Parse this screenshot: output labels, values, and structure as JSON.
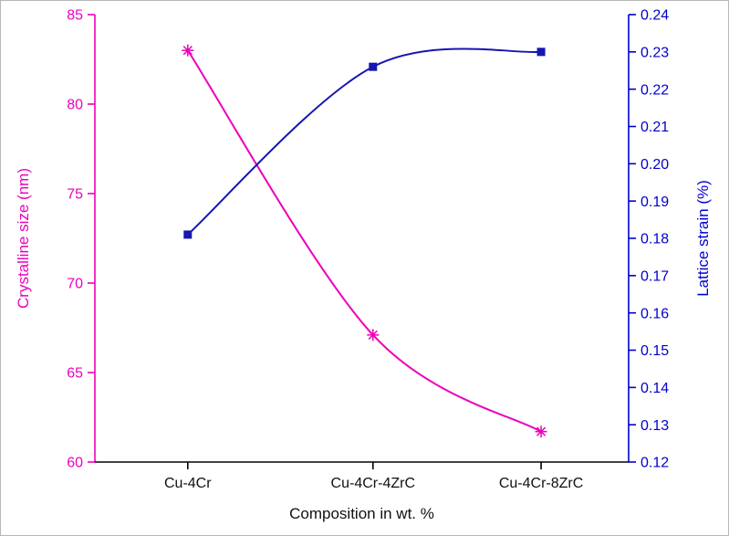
{
  "figure": {
    "background": "#ffffff",
    "border_color": "#b8b8b8"
  },
  "chart_data": {
    "type": "line",
    "title": "",
    "xlabel": "Composition in wt. %",
    "categories": [
      "Cu-4Cr",
      "Cu-4Cr-4ZrC",
      "Cu-4Cr-8ZrC"
    ],
    "x_positions": [
      0.174,
      0.521,
      0.836
    ],
    "left_axis": {
      "label": "Crystalline size (nm)",
      "color": "#ee00bb",
      "min": 60,
      "max": 85,
      "ticks": [
        "85",
        "80",
        "75",
        "70",
        "65",
        "60"
      ]
    },
    "right_axis": {
      "label": "Lattice strain (%)",
      "color": "#0000cd",
      "min": 0.12,
      "max": 0.24,
      "ticks": [
        "0.24",
        "0.23",
        "0.22",
        "0.21",
        "0.20",
        "0.19",
        "0.18",
        "0.17",
        "0.16",
        "0.15",
        "0.14",
        "0.13",
        "0.12"
      ]
    },
    "x_axis_color": "#000000",
    "grid": false,
    "legend": "none",
    "series": [
      {
        "name": "Crystalline size (nm)",
        "axis": "left",
        "color": "#ee00bb",
        "marker": "asterisk",
        "line": "smooth",
        "values": [
          83.0,
          67.1,
          61.7
        ]
      },
      {
        "name": "Lattice strain (%)",
        "axis": "right",
        "color": "#1616b0",
        "marker": "square",
        "line": "smooth",
        "values": [
          0.181,
          0.226,
          0.23
        ]
      }
    ]
  }
}
